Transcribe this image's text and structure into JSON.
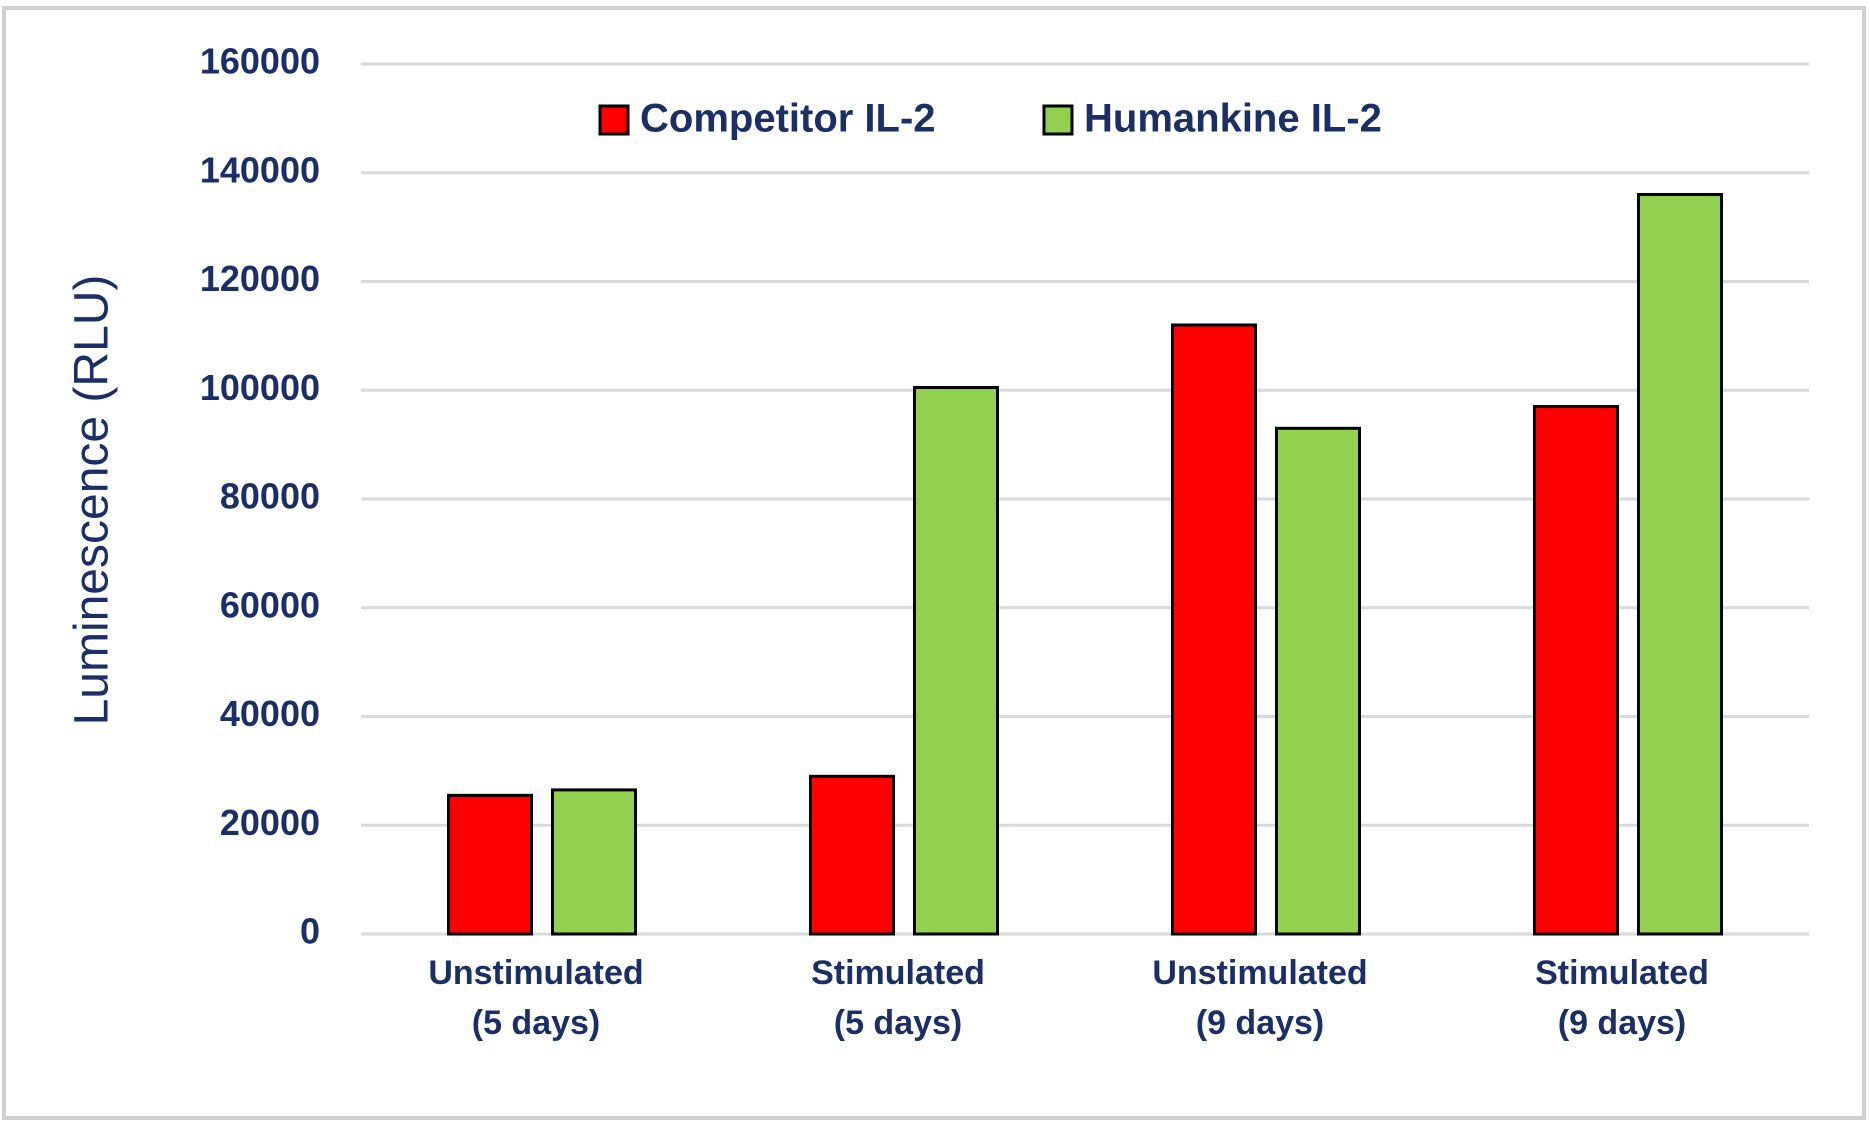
{
  "chart_data": {
    "type": "bar",
    "y_label": "Luminescence (RLU)",
    "categories": [
      [
        "Unstimulated",
        "(5 days)"
      ],
      [
        "Stimulated",
        "(5 days)"
      ],
      [
        "Unstimulated",
        "(9 days)"
      ],
      [
        "Stimulated",
        "(9 days)"
      ]
    ],
    "series": [
      {
        "name": "Competitor IL-2",
        "color": "#ff0000",
        "values": [
          25500,
          29000,
          112000,
          97000
        ]
      },
      {
        "name": "Humankine IL-2",
        "color": "#92d050",
        "values": [
          26500,
          100500,
          93000,
          136000
        ]
      }
    ],
    "ylim": [
      0,
      160000
    ],
    "yticks": [
      0,
      20000,
      40000,
      60000,
      80000,
      100000,
      120000,
      140000,
      160000
    ],
    "grid": true
  }
}
